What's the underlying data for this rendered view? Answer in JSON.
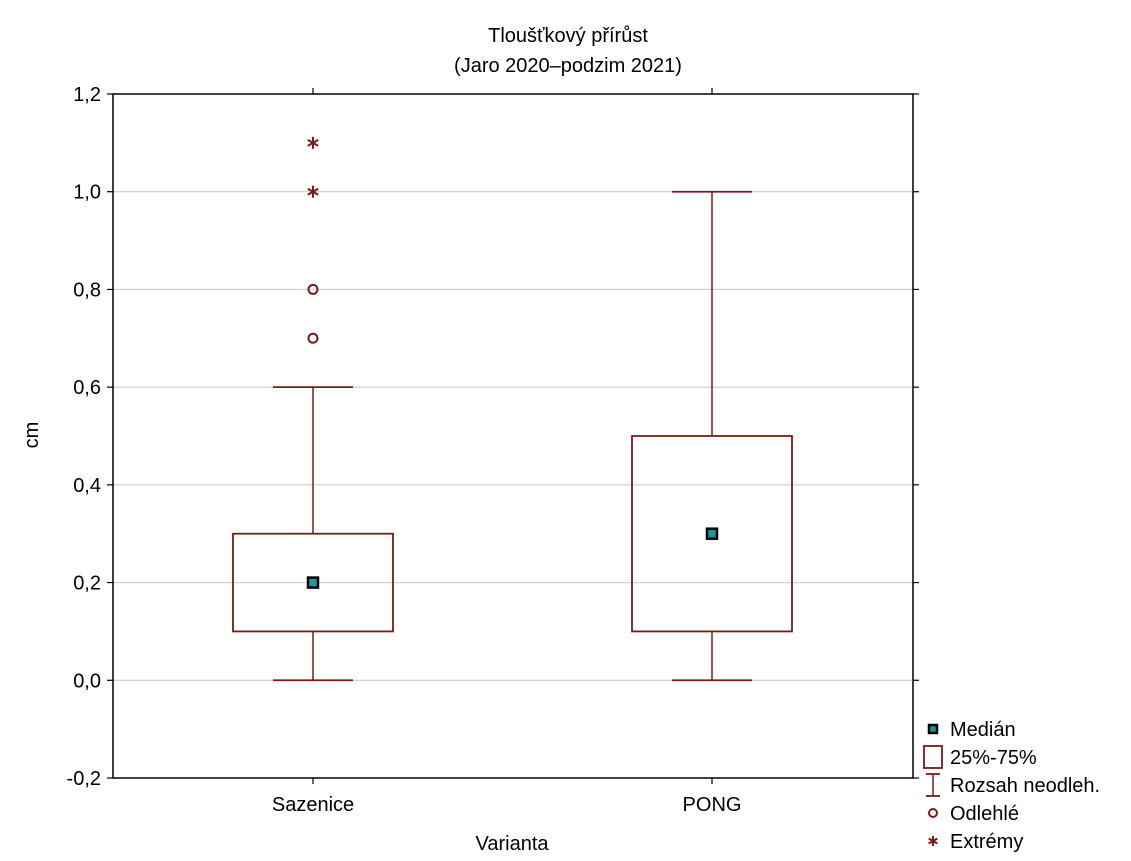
{
  "colors": {
    "box": "#7a1a1a",
    "grid": "#c8c8c8",
    "median_fill": "#1a9a9a",
    "median_border": "#000000",
    "frame": "#000000",
    "background": "#ffffff"
  },
  "chart_data": {
    "type": "boxplot",
    "title": "Tloušťkový přírůst",
    "subtitle": "(Jaro 2020–podzim 2021)",
    "xlabel": "Varianta",
    "ylabel": "cm",
    "ylim": [
      -0.2,
      1.2
    ],
    "yticks": [
      -0.2,
      0.0,
      0.2,
      0.4,
      0.6,
      0.8,
      1.0,
      1.2
    ],
    "ytick_labels": [
      "-0,2",
      "0,0",
      "0,2",
      "0,4",
      "0,6",
      "0,8",
      "1,0",
      "1,2"
    ],
    "grid": true,
    "legend_position": "bottom-right outside",
    "categories": [
      "Sazenice",
      "PONG"
    ],
    "boxes": [
      {
        "category": "Sazenice",
        "median": 0.2,
        "q1": 0.1,
        "q3": 0.3,
        "whisker_low": 0.0,
        "whisker_high": 0.6,
        "outliers": [
          0.7,
          0.8
        ],
        "extremes": [
          1.0,
          1.1
        ]
      },
      {
        "category": "PONG",
        "median": 0.3,
        "q1": 0.1,
        "q3": 0.5,
        "whisker_low": 0.0,
        "whisker_high": 1.0,
        "outliers": [],
        "extremes": []
      }
    ],
    "legend": [
      {
        "key": "median",
        "label": "Medián",
        "symbol": "median-square"
      },
      {
        "key": "box",
        "label": "25%-75%",
        "symbol": "box"
      },
      {
        "key": "range",
        "label": "Rozsah neodleh.",
        "symbol": "whisker"
      },
      {
        "key": "outlier",
        "label": "Odlehlé",
        "symbol": "circle"
      },
      {
        "key": "extreme",
        "label": "Extrémy",
        "symbol": "asterisk"
      }
    ]
  }
}
